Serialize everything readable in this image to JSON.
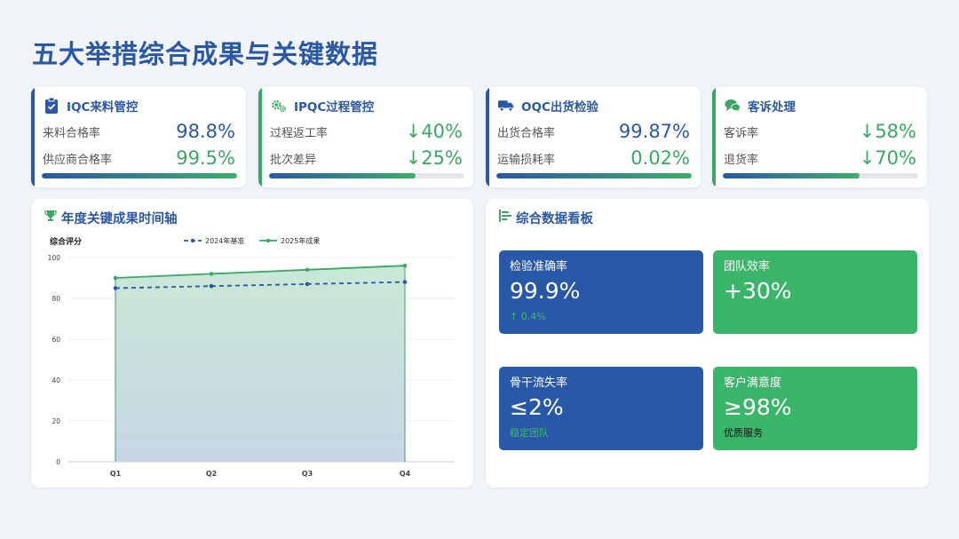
{
  "page": {
    "title": "五大举措综合成果与关键数据"
  },
  "colors": {
    "blue": "#2a58a8",
    "green": "#3aa864",
    "bg": "#f1f4f9"
  },
  "kpis": [
    {
      "icon": "clipboard-check-icon",
      "title": "IQC来料管控",
      "accent": "#2a58a8",
      "rows": [
        {
          "label": "来料合格率",
          "value": "98.8%",
          "color": "blue"
        },
        {
          "label": "供应商合格率",
          "value": "99.5%",
          "color": "green"
        }
      ],
      "progress": 1.0
    },
    {
      "icon": "gears-icon",
      "title": "IPQC过程管控",
      "accent": "#3aa864",
      "rows": [
        {
          "label": "过程返工率",
          "value": "↓40%",
          "color": "green"
        },
        {
          "label": "批次差异",
          "value": "↓25%",
          "color": "green"
        }
      ],
      "progress": 0.75
    },
    {
      "icon": "truck-icon",
      "title": "OQC出货检验",
      "accent": "#2a58a8",
      "rows": [
        {
          "label": "出货合格率",
          "value": "99.87%",
          "color": "blue"
        },
        {
          "label": "运输损耗率",
          "value": "0.02%",
          "color": "green"
        }
      ],
      "progress": 1.0
    },
    {
      "icon": "chat-bubbles-icon",
      "title": "客诉处理",
      "accent": "#3aa864",
      "rows": [
        {
          "label": "客诉率",
          "value": "↓58%",
          "color": "green"
        },
        {
          "label": "退货率",
          "value": "↓70%",
          "color": "green"
        }
      ],
      "progress": 0.7
    }
  ],
  "timeline": {
    "title": "年度关键成果时间轴",
    "icon": "trophy-icon"
  },
  "chart_data": {
    "type": "line",
    "title": "",
    "ylabel": "综合评分",
    "xlabel": "",
    "categories": [
      "Q1",
      "Q2",
      "Q3",
      "Q4"
    ],
    "ylim": [
      0,
      100
    ],
    "yticks": [
      0,
      20,
      40,
      60,
      80,
      100
    ],
    "grid": true,
    "legend": "top-center",
    "series": [
      {
        "name": "2024年基准",
        "values": [
          85,
          86,
          87,
          88
        ],
        "color": "#2a58a8",
        "style": "dashed"
      },
      {
        "name": "2025年成果",
        "values": [
          90,
          92,
          94,
          96
        ],
        "color": "#3aa864",
        "style": "solid",
        "area": true
      }
    ]
  },
  "dashboard": {
    "title": "综合数据看板",
    "icon": "bar-list-icon",
    "tiles": [
      {
        "label": "检验准确率",
        "value": "99.9%",
        "sub": "↑ 0.4%",
        "bg": "#2a58a8",
        "text": "#ffffff",
        "subColor": "#3dbb6b"
      },
      {
        "label": "团队效率",
        "value": "+30%",
        "sub": "",
        "bg": "#3bb56a",
        "text": "#ffffff",
        "subColor": "#ffffff"
      },
      {
        "label": "骨干流失率",
        "value": "≤2%",
        "sub": "稳定团队",
        "bg": "#2a58a8",
        "text": "#ffffff",
        "subColor": "#3dbb6b"
      },
      {
        "label": "客户满意度",
        "value": "≥98%",
        "sub": "优质服务",
        "bg": "#3bb56a",
        "text": "#ffffff",
        "subColor": "#111111"
      }
    ]
  }
}
